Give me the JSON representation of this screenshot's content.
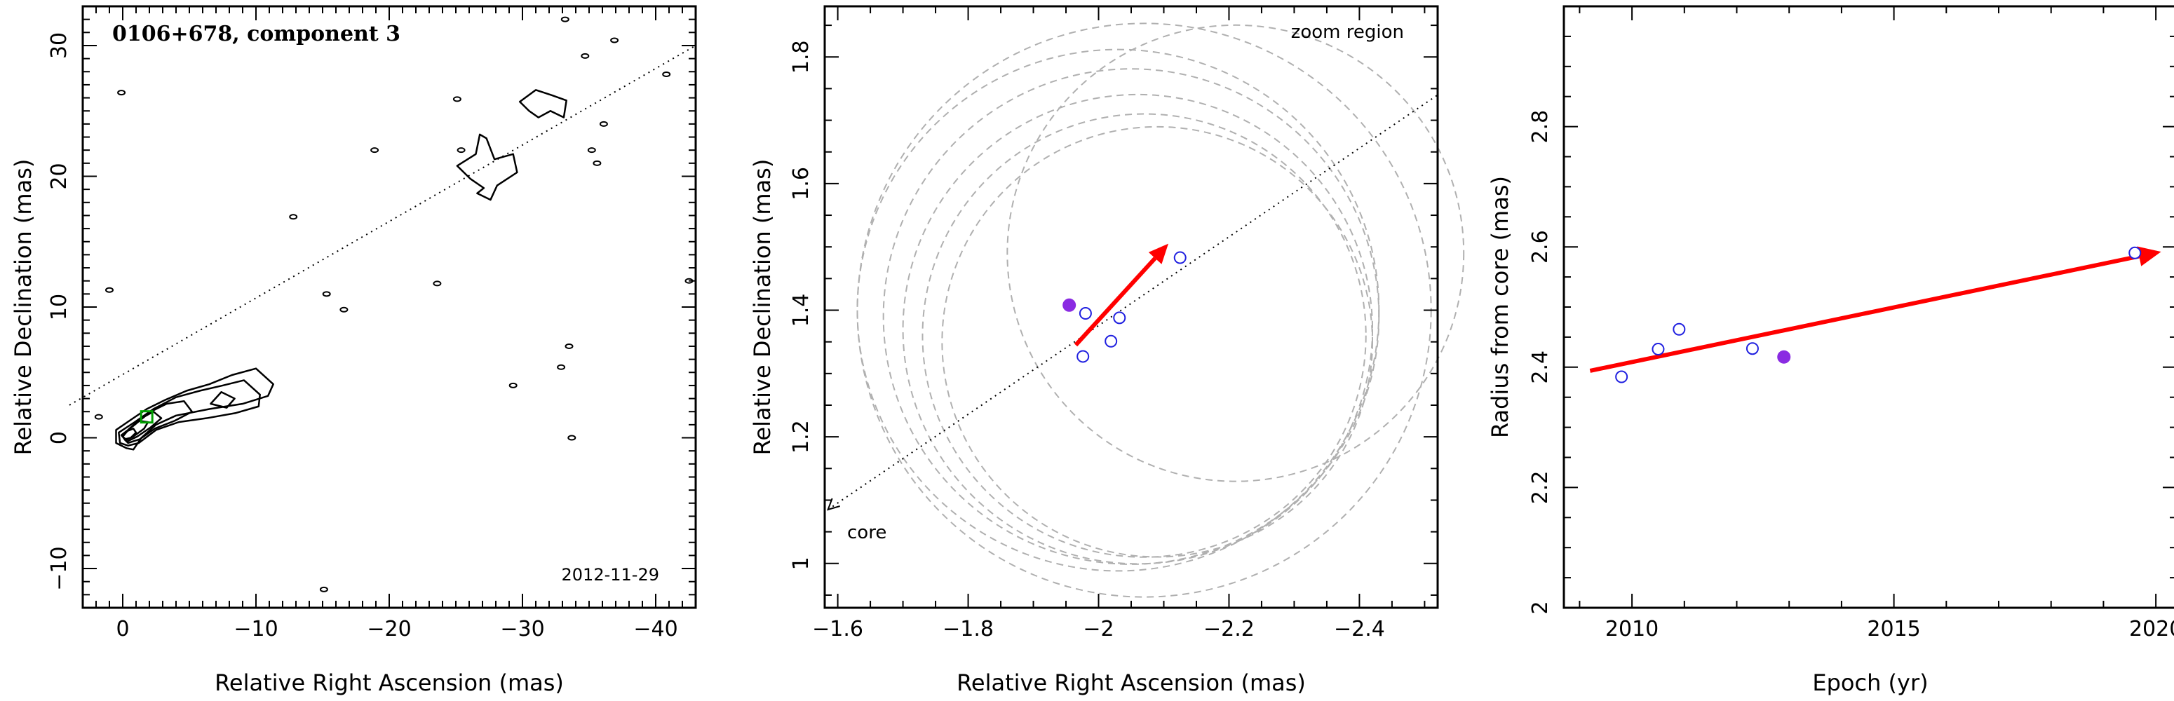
{
  "figure": {
    "background": "#ffffff",
    "colors": {
      "axes": "#000000",
      "open_marker": "#2020e0",
      "filled_marker": "#8a2be2",
      "arrow": "#ff0000",
      "circles": "#b0b0b0",
      "contour": "#000000",
      "model_component": "#00a000"
    }
  },
  "chart_data": [
    {
      "type": "contour-map",
      "panel": "left",
      "title": "0106+678, component 3",
      "date_label": "2012-11-29",
      "xlabel": "Relative Right Ascension (mas)",
      "ylabel": "Relative Declination (mas)",
      "xlim": [
        3,
        -43
      ],
      "ylim": [
        -13,
        33
      ],
      "x_ticks": [
        0,
        -10,
        -20,
        -30,
        -40
      ],
      "y_ticks": [
        -10,
        0,
        10,
        20,
        30
      ],
      "jet_direction_line": {
        "from": [
          4,
          2.5
        ],
        "to": [
          -43,
          30
        ]
      },
      "jet_contours": [
        [
          [
            -0.3,
            -0.8
          ],
          [
            -0.8,
            -0.9
          ],
          [
            -1.4,
            0.0
          ],
          [
            -2.5,
            1.0
          ],
          [
            -4.0,
            1.7
          ],
          [
            -6.5,
            2.2
          ],
          [
            -9.0,
            2.6
          ],
          [
            -10.9,
            3.2
          ],
          [
            -11.3,
            4.1
          ],
          [
            -10.0,
            5.3
          ],
          [
            -8.2,
            4.8
          ],
          [
            -6.5,
            4.1
          ],
          [
            -4.8,
            3.6
          ],
          [
            -3.2,
            2.9
          ],
          [
            -1.8,
            2.2
          ],
          [
            -0.5,
            1.3
          ],
          [
            0.5,
            0.6
          ],
          [
            0.5,
            -0.4
          ]
        ],
        [
          [
            -0.4,
            -0.6
          ],
          [
            -1.2,
            -0.4
          ],
          [
            -2.5,
            0.6
          ],
          [
            -4.2,
            1.2
          ],
          [
            -6.3,
            1.5
          ],
          [
            -8.5,
            1.9
          ],
          [
            -10.2,
            2.4
          ],
          [
            -10.3,
            3.3
          ],
          [
            -9.1,
            4.4
          ],
          [
            -7.5,
            4.0
          ],
          [
            -5.8,
            3.6
          ],
          [
            -4.0,
            3.1
          ],
          [
            -2.3,
            2.2
          ],
          [
            -0.9,
            1.2
          ],
          [
            0.3,
            0.4
          ],
          [
            0.2,
            -0.4
          ]
        ],
        [
          [
            -0.4,
            -0.4
          ],
          [
            -1.3,
            -0.1
          ],
          [
            -2.4,
            0.7
          ],
          [
            -3.9,
            1.3
          ],
          [
            -5.2,
            2.0
          ],
          [
            -4.6,
            2.8
          ],
          [
            -3.3,
            2.6
          ],
          [
            -2.1,
            2.0
          ],
          [
            -0.9,
            1.0
          ],
          [
            0.1,
            0.2
          ]
        ],
        [
          [
            -0.3,
            -0.3
          ],
          [
            -1.1,
            0.1
          ],
          [
            -2.1,
            0.8
          ],
          [
            -2.9,
            1.5
          ],
          [
            -2.3,
            2.0
          ],
          [
            -1.4,
            1.5
          ],
          [
            -0.5,
            0.7
          ],
          [
            0.0,
            0.1
          ]
        ],
        [
          [
            -0.2,
            -0.2
          ],
          [
            -0.8,
            0.1
          ],
          [
            -1.6,
            0.7
          ],
          [
            -1.9,
            1.2
          ],
          [
            -1.2,
            1.3
          ],
          [
            -0.5,
            0.7
          ],
          [
            0.0,
            0.1
          ]
        ],
        [
          [
            -0.2,
            -0.1
          ],
          [
            -0.6,
            0.0
          ],
          [
            -1.0,
            0.4
          ],
          [
            -0.8,
            0.7
          ],
          [
            -0.3,
            0.5
          ],
          [
            0.0,
            0.1
          ]
        ],
        [
          [
            -6.6,
            2.6
          ],
          [
            -7.8,
            2.3
          ],
          [
            -8.4,
            3.0
          ],
          [
            -7.4,
            3.5
          ]
        ],
        [
          [
            -26.8,
            23.2
          ],
          [
            -26.5,
            21.7
          ],
          [
            -25.1,
            20.8
          ],
          [
            -26.1,
            19.8
          ],
          [
            -27.1,
            19.1
          ],
          [
            -26.6,
            18.7
          ],
          [
            -27.6,
            18.2
          ],
          [
            -28.1,
            19.3
          ],
          [
            -29.6,
            20.3
          ],
          [
            -29.3,
            21.7
          ],
          [
            -27.9,
            21.3
          ],
          [
            -27.3,
            22.9
          ]
        ],
        [
          [
            -29.8,
            25.7
          ],
          [
            -31.0,
            26.6
          ],
          [
            -32.2,
            26.2
          ],
          [
            -33.3,
            25.8
          ],
          [
            -33.1,
            24.5
          ],
          [
            -32.1,
            25.0
          ],
          [
            -31.2,
            24.5
          ],
          [
            -30.5,
            25.0
          ]
        ]
      ],
      "noise_blobs": [
        [
          -0.1,
          26.4
        ],
        [
          18.9,
          22.0
        ],
        [
          12.8,
          16.9
        ],
        [
          15.3,
          11.0
        ],
        [
          16.6,
          9.8
        ],
        [
          23.6,
          11.8
        ],
        [
          33.2,
          32.0
        ],
        [
          36.1,
          24.0
        ],
        [
          35.2,
          22.0
        ],
        [
          35.6,
          21.0
        ],
        [
          36.9,
          30.4
        ],
        [
          34.7,
          29.2
        ],
        [
          40.8,
          27.8
        ],
        [
          42.5,
          12.0
        ],
        [
          29.3,
          4.0
        ],
        [
          33.5,
          7.0
        ],
        [
          32.9,
          5.4
        ],
        [
          33.7,
          0.0
        ],
        [
          15.1,
          -11.6
        ],
        [
          25.1,
          25.9
        ],
        [
          25.4,
          22.0
        ],
        [
          -1.0,
          11.3
        ],
        [
          -1.8,
          1.6
        ]
      ],
      "model_component": {
        "x": -1.8,
        "y": 1.6,
        "label": "component 3"
      }
    },
    {
      "type": "scatter",
      "panel": "middle",
      "title": "zoom region",
      "core_label": "core",
      "xlabel": "Relative Right Ascension (mas)",
      "ylabel": "Relative Declination (mas)",
      "xlim": [
        -1.58,
        -2.52
      ],
      "ylim": [
        0.93,
        1.88
      ],
      "x_ticks": [
        -1.6,
        -1.8,
        -2,
        -2.2,
        -2.4
      ],
      "y_ticks": [
        1,
        1.2,
        1.4,
        1.6,
        1.8
      ],
      "jet_direction_line": {
        "from": [
          -1.585,
          1.085
        ],
        "to": [
          -2.52,
          1.74
        ]
      },
      "open_points": [
        {
          "x": -1.98,
          "y": 1.395
        },
        {
          "x": -1.976,
          "y": 1.327
        },
        {
          "x": -2.019,
          "y": 1.351
        },
        {
          "x": -2.032,
          "y": 1.388
        },
        {
          "x": -2.125,
          "y": 1.483
        }
      ],
      "filled_points": [
        {
          "x": -1.955,
          "y": 1.408
        }
      ],
      "velocity_arrow": {
        "from": [
          -1.965,
          1.345
        ],
        "to": [
          -2.107,
          1.505
        ]
      },
      "error_circles": [
        {
          "cx": -2.07,
          "cy": 1.4,
          "r": 0.44
        },
        {
          "cx": -2.03,
          "cy": 1.4,
          "r": 0.4
        },
        {
          "cx": -2.05,
          "cy": 1.39,
          "r": 0.38
        },
        {
          "cx": -2.06,
          "cy": 1.37,
          "r": 0.36
        },
        {
          "cx": -2.07,
          "cy": 1.36,
          "r": 0.34
        },
        {
          "cx": -2.09,
          "cy": 1.35,
          "r": 0.33
        },
        {
          "cx": -2.21,
          "cy": 1.49,
          "r": 0.35
        }
      ]
    },
    {
      "type": "scatter",
      "panel": "right",
      "xlabel": "Epoch (yr)",
      "ylabel": "Radius from core (mas)",
      "xlim": [
        2008.7,
        2020.4
      ],
      "ylim": [
        2.0,
        3.0
      ],
      "x_ticks": [
        2010,
        2015,
        2020
      ],
      "y_ticks": [
        2,
        2.2,
        2.4,
        2.6,
        2.8
      ],
      "open_points": [
        {
          "x": 2009.8,
          "y": 2.384
        },
        {
          "x": 2010.5,
          "y": 2.43
        },
        {
          "x": 2010.9,
          "y": 2.463
        },
        {
          "x": 2012.3,
          "y": 2.431
        },
        {
          "x": 2019.6,
          "y": 2.59
        }
      ],
      "filled_points": [
        {
          "x": 2012.9,
          "y": 2.417
        }
      ],
      "fit_arrow": {
        "from": [
          2009.2,
          2.394
        ],
        "to": [
          2020.1,
          2.592
        ]
      }
    }
  ]
}
